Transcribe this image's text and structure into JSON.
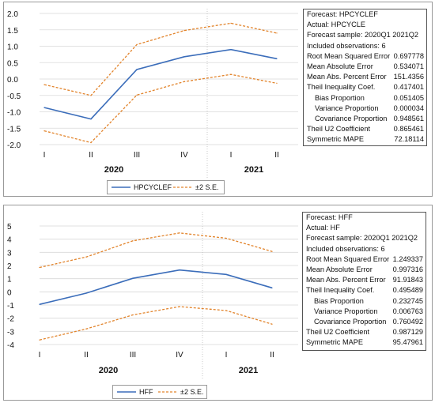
{
  "colors": {
    "forecast": "#3b6dba",
    "bands": "#e2832a",
    "grid": "#d9d9d9",
    "divider": "#bbbbbb"
  },
  "chart_data": [
    {
      "type": "line",
      "title": "",
      "xlabel": "",
      "ylabel": "",
      "categories": [
        "I",
        "II",
        "III",
        "IV",
        "I",
        "II"
      ],
      "year_labels": [
        "2020",
        "2021"
      ],
      "yticks": [
        "2.0",
        "1.5",
        "1.0",
        "0.5",
        "0.0",
        "-0.5",
        "-1.0",
        "-1.5",
        "-2.0"
      ],
      "ylim": [
        -2.0,
        2.0
      ],
      "grid": "horizontal",
      "legend_position": "bottom",
      "series": [
        {
          "name": "HPCYCLEF",
          "style": "solid",
          "color": "#3b6dba",
          "values": [
            -0.87,
            -1.22,
            0.29,
            0.68,
            0.9,
            0.62
          ]
        },
        {
          "name": "±2 S.E.",
          "style": "dashed",
          "color": "#e2832a",
          "values": [
            -0.17,
            -0.5,
            1.05,
            1.48,
            1.7,
            1.4
          ]
        },
        {
          "name": "",
          "style": "dashed",
          "color": "#e2832a",
          "values": [
            -1.58,
            -1.94,
            -0.49,
            -0.08,
            0.14,
            -0.13
          ]
        }
      ],
      "stats": [
        {
          "label": "Forecast: HPCYCLEF",
          "value": ""
        },
        {
          "label": "Actual: HPCYCLE",
          "value": ""
        },
        {
          "label": "Forecast sample: 2020Q1 2021Q2",
          "value": ""
        },
        {
          "label": "Included observations: 6",
          "value": ""
        },
        {
          "label": "Root Mean Squared Error",
          "value": "0.697778"
        },
        {
          "label": "Mean Absolute Error",
          "value": "0.534071"
        },
        {
          "label": "Mean Abs. Percent Error",
          "value": "151.4356"
        },
        {
          "label": "Theil Inequality Coef.",
          "value": "0.417401"
        },
        {
          "label": "Bias Proportion",
          "value": "0.051405",
          "indent": true
        },
        {
          "label": "Variance Proportion",
          "value": "0.000034",
          "indent": true
        },
        {
          "label": "Covariance Proportion",
          "value": "0.948561",
          "indent": true
        },
        {
          "label": "Theil U2 Coefficient",
          "value": "0.865461"
        },
        {
          "label": "Symmetric MAPE",
          "value": "72.18114"
        }
      ]
    },
    {
      "type": "line",
      "title": "",
      "xlabel": "",
      "ylabel": "",
      "categories": [
        "I",
        "II",
        "III",
        "IV",
        "I",
        "II"
      ],
      "year_labels": [
        "2020",
        "2021"
      ],
      "yticks": [
        "5",
        "4",
        "3",
        "2",
        "1",
        "0",
        "-1",
        "-2",
        "-3",
        "-4"
      ],
      "ylim": [
        -4,
        5
      ],
      "grid": "horizontal",
      "legend_position": "bottom",
      "series": [
        {
          "name": "HFF",
          "style": "solid",
          "color": "#3b6dba",
          "values": [
            -0.95,
            -0.1,
            1.03,
            1.66,
            1.32,
            0.3
          ]
        },
        {
          "name": "±2 S.E.",
          "style": "dashed",
          "color": "#e2832a",
          "values": [
            1.85,
            2.65,
            3.87,
            4.47,
            4.07,
            3.07
          ]
        },
        {
          "name": "",
          "style": "dashed",
          "color": "#e2832a",
          "values": [
            -3.65,
            -2.82,
            -1.75,
            -1.12,
            -1.42,
            -2.45
          ]
        }
      ],
      "stats": [
        {
          "label": "Forecast: HFF",
          "value": ""
        },
        {
          "label": "Actual: HF",
          "value": ""
        },
        {
          "label": "Forecast sample: 2020Q1 2021Q2",
          "value": ""
        },
        {
          "label": "Included observations: 6",
          "value": ""
        },
        {
          "label": "Root Mean Squared Error",
          "value": "1.249337"
        },
        {
          "label": "Mean Absolute Error",
          "value": "0.997316"
        },
        {
          "label": "Mean Abs. Percent Error",
          "value": "91.91843"
        },
        {
          "label": "Theil Inequality Coef.",
          "value": "0.495489"
        },
        {
          "label": "Bias Proportion",
          "value": "0.232745",
          "indent": true
        },
        {
          "label": "Variance Proportion",
          "value": "0.006763",
          "indent": true
        },
        {
          "label": "Covariance Proportion",
          "value": "0.760492",
          "indent": true
        },
        {
          "label": "Theil U2 Coefficient",
          "value": "0.987129"
        },
        {
          "label": "Symmetric MAPE",
          "value": "95.47961"
        }
      ]
    }
  ]
}
